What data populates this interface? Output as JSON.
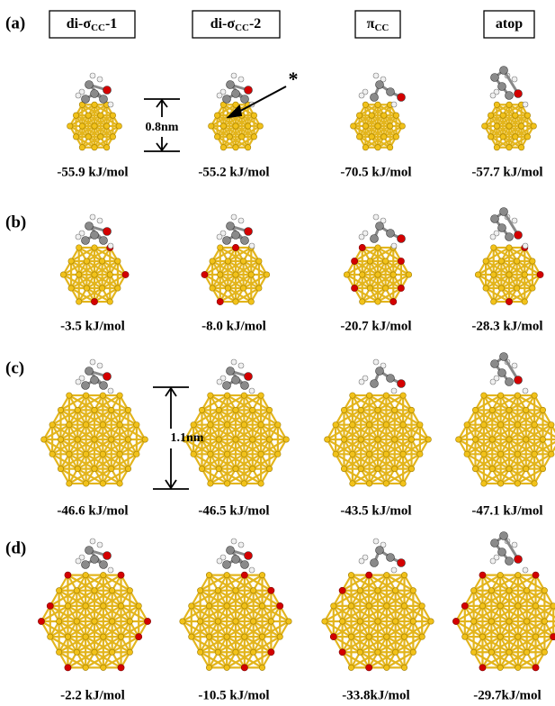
{
  "row_labels": [
    "(a)",
    "(b)",
    "(c)",
    "(d)"
  ],
  "column_headers": [
    {
      "main": "di-σ",
      "subscript": "CC",
      "suffix": "-1"
    },
    {
      "main": "di-σ",
      "subscript": "CC",
      "suffix": "-2"
    },
    {
      "main": "π",
      "subscript": "CC"
    },
    {
      "main": "atop"
    }
  ],
  "energies": [
    [
      "-55.9 kJ/mol",
      "-55.2 kJ/mol",
      "-70.5 kJ/mol",
      "-57.7 kJ/mol"
    ],
    [
      "-3.5 kJ/mol",
      "-8.0 kJ/mol",
      "-20.7 kJ/mol",
      "-28.3 kJ/mol"
    ],
    [
      "-46.6 kJ/mol",
      "-46.5 kJ/mol",
      "-43.5 kJ/mol",
      "-47.1 kJ/mol"
    ],
    [
      "-2.2 kJ/mol",
      "-10.5 kJ/mol",
      "-33.8kJ/mol",
      "-29.7kJ/mol"
    ]
  ],
  "annotations": {
    "scale_a": "0.8nm",
    "scale_c": "1.1nm",
    "marker": "*"
  }
}
